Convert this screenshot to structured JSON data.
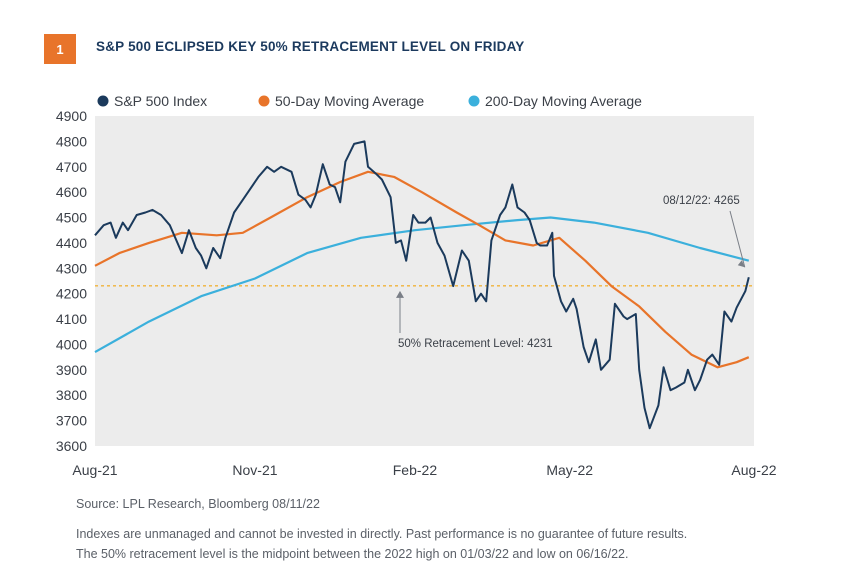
{
  "figure": {
    "number": "1",
    "title": "S&P 500 ECLIPSED KEY 50% RETRACEMENT LEVEL ON FRIDAY"
  },
  "colors": {
    "badge": "#e8742a",
    "title": "#1c3a5e",
    "sp500": "#1b3a5c",
    "ma50": "#e8742a",
    "ma200": "#3bb0dc",
    "retracement": "#f0b23a",
    "plot_bg": "#ececec"
  },
  "chart_data": {
    "type": "line",
    "x_tick_labels": [
      "Aug-21",
      "Nov-21",
      "Feb-22",
      "May-22",
      "Aug-22"
    ],
    "y_tick_labels": [
      "3600",
      "3700",
      "3800",
      "3900",
      "4000",
      "4100",
      "4200",
      "4300",
      "4400",
      "4500",
      "4600",
      "4700",
      "4800",
      "4900"
    ],
    "ylim": [
      3600,
      4900
    ],
    "x_domain": [
      "2021-08-01",
      "2022-08-15"
    ],
    "x_tick_dates": [
      "2021-08-01",
      "2021-11-01",
      "2022-02-01",
      "2022-05-01",
      "2022-08-15"
    ],
    "grid": false,
    "legend_position": "top",
    "series": [
      {
        "name": "S&P 500 Index",
        "color": "#1b3a5c",
        "points": [
          [
            "2021-08-01",
            4430
          ],
          [
            "2021-08-06",
            4470
          ],
          [
            "2021-08-10",
            4480
          ],
          [
            "2021-08-13",
            4420
          ],
          [
            "2021-08-17",
            4480
          ],
          [
            "2021-08-20",
            4450
          ],
          [
            "2021-08-25",
            4510
          ],
          [
            "2021-08-30",
            4520
          ],
          [
            "2021-09-03",
            4530
          ],
          [
            "2021-09-08",
            4510
          ],
          [
            "2021-09-13",
            4470
          ],
          [
            "2021-09-20",
            4360
          ],
          [
            "2021-09-24",
            4450
          ],
          [
            "2021-09-28",
            4380
          ],
          [
            "2021-10-01",
            4350
          ],
          [
            "2021-10-04",
            4300
          ],
          [
            "2021-10-08",
            4380
          ],
          [
            "2021-10-12",
            4340
          ],
          [
            "2021-10-15",
            4420
          ],
          [
            "2021-10-20",
            4520
          ],
          [
            "2021-10-25",
            4570
          ],
          [
            "2021-10-29",
            4610
          ],
          [
            "2021-11-03",
            4660
          ],
          [
            "2021-11-08",
            4700
          ],
          [
            "2021-11-12",
            4680
          ],
          [
            "2021-11-16",
            4700
          ],
          [
            "2021-11-19",
            4690
          ],
          [
            "2021-11-22",
            4680
          ],
          [
            "2021-11-26",
            4590
          ],
          [
            "2021-11-30",
            4570
          ],
          [
            "2021-12-03",
            4540
          ],
          [
            "2021-12-06",
            4590
          ],
          [
            "2021-12-10",
            4710
          ],
          [
            "2021-12-14",
            4630
          ],
          [
            "2021-12-17",
            4620
          ],
          [
            "2021-12-20",
            4560
          ],
          [
            "2021-12-23",
            4720
          ],
          [
            "2021-12-28",
            4790
          ],
          [
            "2022-01-03",
            4800
          ],
          [
            "2022-01-05",
            4700
          ],
          [
            "2022-01-10",
            4670
          ],
          [
            "2022-01-13",
            4650
          ],
          [
            "2022-01-18",
            4580
          ],
          [
            "2022-01-21",
            4400
          ],
          [
            "2022-01-24",
            4410
          ],
          [
            "2022-01-27",
            4330
          ],
          [
            "2022-01-31",
            4510
          ],
          [
            "2022-02-03",
            4480
          ],
          [
            "2022-02-07",
            4480
          ],
          [
            "2022-02-10",
            4500
          ],
          [
            "2022-02-14",
            4400
          ],
          [
            "2022-02-18",
            4350
          ],
          [
            "2022-02-23",
            4230
          ],
          [
            "2022-02-28",
            4370
          ],
          [
            "2022-03-04",
            4330
          ],
          [
            "2022-03-08",
            4170
          ],
          [
            "2022-03-11",
            4200
          ],
          [
            "2022-03-14",
            4170
          ],
          [
            "2022-03-17",
            4410
          ],
          [
            "2022-03-22",
            4510
          ],
          [
            "2022-03-25",
            4540
          ],
          [
            "2022-03-29",
            4630
          ],
          [
            "2022-04-01",
            4540
          ],
          [
            "2022-04-05",
            4520
          ],
          [
            "2022-04-08",
            4490
          ],
          [
            "2022-04-12",
            4400
          ],
          [
            "2022-04-14",
            4390
          ],
          [
            "2022-04-18",
            4390
          ],
          [
            "2022-04-21",
            4440
          ],
          [
            "2022-04-22",
            4270
          ],
          [
            "2022-04-26",
            4170
          ],
          [
            "2022-04-29",
            4130
          ],
          [
            "2022-05-03",
            4180
          ],
          [
            "2022-05-05",
            4140
          ],
          [
            "2022-05-09",
            3990
          ],
          [
            "2022-05-12",
            3930
          ],
          [
            "2022-05-16",
            4020
          ],
          [
            "2022-05-19",
            3900
          ],
          [
            "2022-05-24",
            3940
          ],
          [
            "2022-05-27",
            4160
          ],
          [
            "2022-06-01",
            4110
          ],
          [
            "2022-06-03",
            4100
          ],
          [
            "2022-06-08",
            4120
          ],
          [
            "2022-06-10",
            3900
          ],
          [
            "2022-06-13",
            3750
          ],
          [
            "2022-06-16",
            3670
          ],
          [
            "2022-06-21",
            3760
          ],
          [
            "2022-06-24",
            3910
          ],
          [
            "2022-06-28",
            3820
          ],
          [
            "2022-07-01",
            3830
          ],
          [
            "2022-07-06",
            3850
          ],
          [
            "2022-07-08",
            3900
          ],
          [
            "2022-07-12",
            3820
          ],
          [
            "2022-07-15",
            3860
          ],
          [
            "2022-07-19",
            3940
          ],
          [
            "2022-07-22",
            3960
          ],
          [
            "2022-07-26",
            3920
          ],
          [
            "2022-07-29",
            4130
          ],
          [
            "2022-08-02",
            4090
          ],
          [
            "2022-08-05",
            4145
          ],
          [
            "2022-08-10",
            4210
          ],
          [
            "2022-08-12",
            4265
          ]
        ]
      },
      {
        "name": "50-Day Moving Average",
        "color": "#e8742a",
        "points": [
          [
            "2021-08-01",
            4310
          ],
          [
            "2021-08-15",
            4360
          ],
          [
            "2021-09-01",
            4400
          ],
          [
            "2021-09-20",
            4440
          ],
          [
            "2021-10-10",
            4430
          ],
          [
            "2021-10-25",
            4440
          ],
          [
            "2021-11-10",
            4500
          ],
          [
            "2021-12-01",
            4580
          ],
          [
            "2021-12-20",
            4640
          ],
          [
            "2022-01-05",
            4680
          ],
          [
            "2022-01-20",
            4660
          ],
          [
            "2022-02-05",
            4600
          ],
          [
            "2022-02-25",
            4520
          ],
          [
            "2022-03-10",
            4470
          ],
          [
            "2022-03-25",
            4410
          ],
          [
            "2022-04-10",
            4390
          ],
          [
            "2022-04-25",
            4420
          ],
          [
            "2022-05-10",
            4330
          ],
          [
            "2022-05-25",
            4230
          ],
          [
            "2022-06-10",
            4150
          ],
          [
            "2022-06-25",
            4050
          ],
          [
            "2022-07-10",
            3960
          ],
          [
            "2022-07-25",
            3910
          ],
          [
            "2022-08-05",
            3930
          ],
          [
            "2022-08-12",
            3950
          ]
        ]
      },
      {
        "name": "200-Day Moving Average",
        "color": "#3bb0dc",
        "points": [
          [
            "2021-08-01",
            3970
          ],
          [
            "2021-09-01",
            4090
          ],
          [
            "2021-10-01",
            4190
          ],
          [
            "2021-11-01",
            4260
          ],
          [
            "2021-12-01",
            4360
          ],
          [
            "2022-01-01",
            4420
          ],
          [
            "2022-02-01",
            4450
          ],
          [
            "2022-03-01",
            4470
          ],
          [
            "2022-04-01",
            4490
          ],
          [
            "2022-04-20",
            4500
          ],
          [
            "2022-05-15",
            4480
          ],
          [
            "2022-06-15",
            4440
          ],
          [
            "2022-07-15",
            4380
          ],
          [
            "2022-08-12",
            4330
          ]
        ]
      }
    ],
    "reference_line": {
      "value": 4231,
      "color": "#f0b23a",
      "style": "dashed"
    },
    "annotations": [
      {
        "text": "08/12/22: 4265",
        "date": "2022-08-12",
        "value": 4265
      },
      {
        "text": "50% Retracement Level: 4231",
        "date": "2022-01-20",
        "value": 4231
      }
    ]
  },
  "footer": {
    "source": "Source: LPL Research, Bloomberg  08/11/22",
    "disclaimer_1": "Indexes are unmanaged and cannot be invested in directly. Past performance is no guarantee of future results.",
    "disclaimer_2": "The 50% retracement level is the midpoint between the 2022 high on 01/03/22 and low on 06/16/22."
  }
}
